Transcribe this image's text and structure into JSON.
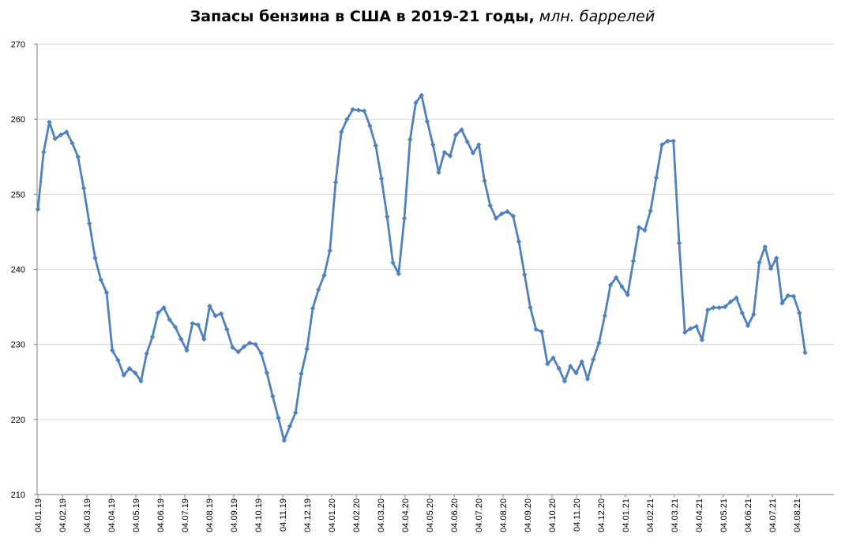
{
  "chart_data": {
    "type": "line",
    "title": "Запасы бензина в США в 2019-21 годы,",
    "title_unit": "млн. баррелей",
    "xlabel": "",
    "ylabel": "",
    "ylim": [
      210,
      270
    ],
    "yticks": [
      "210",
      "220",
      "230",
      "240",
      "250",
      "260",
      "270"
    ],
    "xtick_labels": [
      "04.01.19",
      "04.02.19",
      "04.03.19",
      "04.04.19",
      "04.05.19",
      "04.06.19",
      "04.07.19",
      "04.08.19",
      "04.09.19",
      "04.10.19",
      "04.11.19",
      "04.12.19",
      "04.01.20",
      "04.02.20",
      "04.03.20",
      "04.04.20",
      "04.05.20",
      "04.06.20",
      "04.07.20",
      "04.08.20",
      "04.09.20",
      "04.10.20",
      "04.11.20",
      "04.12.20",
      "04.01.21",
      "04.02.21",
      "04.03.21",
      "04.04.21",
      "04.05.21",
      "04.06.21",
      "04.07.21",
      "04.08.21"
    ],
    "grid": true,
    "legend": "none",
    "colors": {
      "line": "#4f81bd",
      "grid": "#d9d9d9",
      "axis": "#808080"
    },
    "series": [
      {
        "values": [
          248.0,
          255.6,
          259.6,
          257.4,
          257.9,
          258.3,
          256.8,
          255.0,
          250.8,
          246.1,
          241.5,
          238.6,
          236.9,
          229.2,
          227.9,
          225.9,
          226.8,
          226.2,
          225.1,
          228.8,
          231.0,
          234.2,
          234.9,
          233.3,
          232.3,
          230.7,
          229.2,
          232.8,
          232.6,
          230.7,
          235.1,
          233.8,
          234.1,
          232.0,
          229.6,
          229.0,
          229.7,
          230.2,
          230.0,
          228.8,
          226.2,
          223.1,
          220.2,
          217.2,
          219.1,
          220.9,
          226.1,
          229.4,
          234.8,
          237.3,
          239.2,
          242.5,
          251.6,
          258.3,
          260.0,
          261.3,
          261.2,
          261.1,
          259.1,
          256.5,
          252.1,
          247.0,
          240.9,
          239.4,
          246.8,
          257.3,
          262.2,
          263.2,
          259.7,
          256.6,
          252.9,
          255.6,
          255.1,
          257.9,
          258.6,
          257.0,
          255.5,
          256.6,
          251.8,
          248.5,
          246.8,
          247.4,
          247.7,
          247.1,
          243.7,
          239.3,
          234.9,
          232.0,
          231.7,
          227.4,
          228.2,
          226.8,
          225.1,
          227.1,
          226.2,
          227.7,
          225.4,
          228.0,
          230.2,
          233.8,
          237.9,
          238.9,
          237.7,
          236.6,
          241.1,
          245.6,
          245.2,
          247.8,
          252.2,
          256.6,
          257.1,
          257.1,
          243.5,
          231.6,
          232.1,
          232.4,
          230.6,
          234.6,
          234.9,
          234.9,
          235.0,
          235.7,
          236.2,
          234.2,
          232.5,
          234.0,
          240.9,
          243.0,
          240.1,
          241.5,
          235.5,
          236.5,
          236.4,
          234.2,
          228.9
        ]
      }
    ]
  }
}
